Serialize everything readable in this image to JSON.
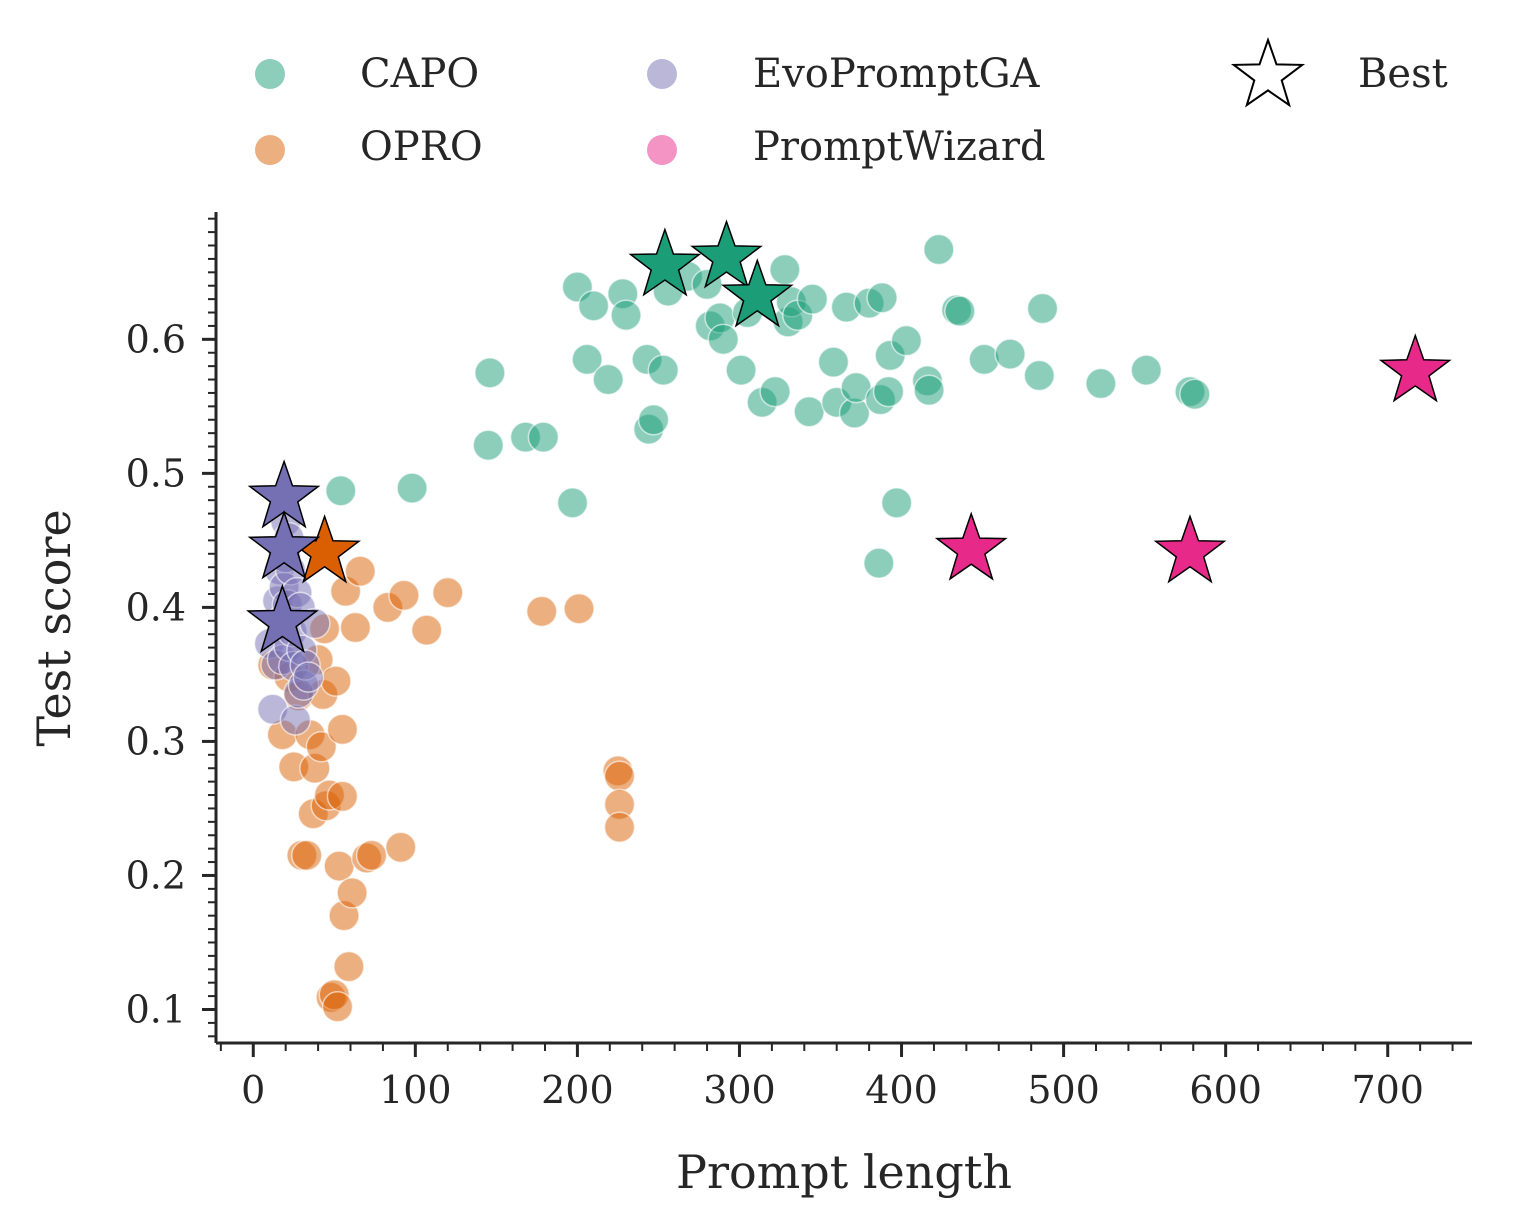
{
  "chart_data": {
    "type": "scatter",
    "title": "",
    "xlabel": "Prompt length",
    "ylabel": "Test score",
    "xlim": [
      -23,
      752
    ],
    "ylim": [
      0.075,
      0.695
    ],
    "x_ticks": [
      "0",
      "100",
      "200",
      "300",
      "400",
      "500",
      "600",
      "700"
    ],
    "y_ticks": [
      "0.1",
      "0.2",
      "0.3",
      "0.4",
      "0.5",
      "0.6"
    ],
    "grid": false,
    "legend_position": "top",
    "best_legend_label": "Best",
    "series": [
      {
        "name": "CAPO",
        "color": "#1b9e77",
        "points": [
          [
            54,
            0.487
          ],
          [
            98,
            0.489
          ],
          [
            145,
            0.521
          ],
          [
            146,
            0.575
          ],
          [
            168,
            0.527
          ],
          [
            179,
            0.527
          ],
          [
            197,
            0.478
          ],
          [
            200,
            0.639
          ],
          [
            206,
            0.585
          ],
          [
            210,
            0.625
          ],
          [
            219,
            0.57
          ],
          [
            228,
            0.634
          ],
          [
            230,
            0.618
          ],
          [
            243,
            0.585
          ],
          [
            244,
            0.533
          ],
          [
            247,
            0.54
          ],
          [
            253,
            0.577
          ],
          [
            256,
            0.636
          ],
          [
            268,
            0.647
          ],
          [
            280,
            0.641
          ],
          [
            282,
            0.61
          ],
          [
            288,
            0.616
          ],
          [
            290,
            0.6
          ],
          [
            301,
            0.577
          ],
          [
            305,
            0.62
          ],
          [
            314,
            0.553
          ],
          [
            322,
            0.561
          ],
          [
            328,
            0.652
          ],
          [
            330,
            0.613
          ],
          [
            332,
            0.628
          ],
          [
            336,
            0.618
          ],
          [
            343,
            0.546
          ],
          [
            345,
            0.63
          ],
          [
            358,
            0.583
          ],
          [
            360,
            0.553
          ],
          [
            366,
            0.624
          ],
          [
            371,
            0.545
          ],
          [
            372,
            0.564
          ],
          [
            380,
            0.627
          ],
          [
            387,
            0.555
          ],
          [
            388,
            0.631
          ],
          [
            392,
            0.561
          ],
          [
            393,
            0.588
          ],
          [
            397,
            0.478
          ],
          [
            403,
            0.599
          ],
          [
            386,
            0.433
          ],
          [
            416,
            0.569
          ],
          [
            417,
            0.562
          ],
          [
            423,
            0.667
          ],
          [
            434,
            0.622
          ],
          [
            436,
            0.621
          ],
          [
            451,
            0.585
          ],
          [
            467,
            0.589
          ],
          [
            485,
            0.573
          ],
          [
            487,
            0.623
          ],
          [
            523,
            0.567
          ],
          [
            551,
            0.577
          ],
          [
            578,
            0.561
          ],
          [
            581,
            0.559
          ]
        ]
      },
      {
        "name": "OPRO",
        "color": "#d95f02",
        "points": [
          [
            12,
            0.357
          ],
          [
            18,
            0.305
          ],
          [
            22,
            0.348
          ],
          [
            25,
            0.281
          ],
          [
            28,
            0.334
          ],
          [
            30,
            0.215
          ],
          [
            33,
            0.215
          ],
          [
            35,
            0.305
          ],
          [
            37,
            0.246
          ],
          [
            38,
            0.28
          ],
          [
            40,
            0.361
          ],
          [
            42,
            0.296
          ],
          [
            43,
            0.335
          ],
          [
            44,
            0.384
          ],
          [
            45,
            0.252
          ],
          [
            47,
            0.26
          ],
          [
            48,
            0.109
          ],
          [
            50,
            0.111
          ],
          [
            51,
            0.345
          ],
          [
            52,
            0.102
          ],
          [
            53,
            0.207
          ],
          [
            55,
            0.259
          ],
          [
            55,
            0.309
          ],
          [
            56,
            0.17
          ],
          [
            57,
            0.412
          ],
          [
            59,
            0.132
          ],
          [
            61,
            0.187
          ],
          [
            63,
            0.385
          ],
          [
            66,
            0.427
          ],
          [
            70,
            0.213
          ],
          [
            73,
            0.215
          ],
          [
            83,
            0.4
          ],
          [
            91,
            0.221
          ],
          [
            93,
            0.409
          ],
          [
            107,
            0.383
          ],
          [
            120,
            0.411
          ],
          [
            178,
            0.397
          ],
          [
            201,
            0.399
          ],
          [
            225,
            0.278
          ],
          [
            226,
            0.274
          ],
          [
            226,
            0.253
          ],
          [
            226,
            0.236
          ]
        ]
      },
      {
        "name": "EvoPromptGA",
        "color": "#7570b3",
        "points": [
          [
            10,
            0.373
          ],
          [
            12,
            0.324
          ],
          [
            14,
            0.357
          ],
          [
            15,
            0.405
          ],
          [
            16,
            0.428
          ],
          [
            17,
            0.39
          ],
          [
            18,
            0.361
          ],
          [
            18,
            0.443
          ],
          [
            19,
            0.415
          ],
          [
            20,
            0.464
          ],
          [
            20,
            0.437
          ],
          [
            21,
            0.402
          ],
          [
            22,
            0.452
          ],
          [
            22,
            0.371
          ],
          [
            23,
            0.428
          ],
          [
            24,
            0.382
          ],
          [
            25,
            0.356
          ],
          [
            26,
            0.316
          ],
          [
            27,
            0.411
          ],
          [
            28,
            0.336
          ],
          [
            29,
            0.4
          ],
          [
            30,
            0.368
          ],
          [
            31,
            0.342
          ],
          [
            32,
            0.357
          ],
          [
            34,
            0.348
          ],
          [
            38,
            0.388
          ]
        ]
      },
      {
        "name": "PromptWizard",
        "color": "#e7298a",
        "points": []
      }
    ],
    "best": [
      {
        "series": "CAPO",
        "color": "#1b9e77",
        "points": [
          [
            254,
            0.655
          ],
          [
            292,
            0.661
          ],
          [
            311,
            0.632
          ]
        ]
      },
      {
        "series": "OPRO",
        "color": "#d95f02",
        "points": [
          [
            44,
            0.441
          ]
        ]
      },
      {
        "series": "EvoPromptGA",
        "color": "#7570b3",
        "points": [
          [
            19,
            0.482
          ],
          [
            19,
            0.444
          ],
          [
            18,
            0.389
          ]
        ]
      },
      {
        "series": "PromptWizard",
        "color": "#e7298a",
        "points": [
          [
            443,
            0.443
          ],
          [
            578,
            0.441
          ],
          [
            717,
            0.576
          ]
        ]
      }
    ]
  }
}
